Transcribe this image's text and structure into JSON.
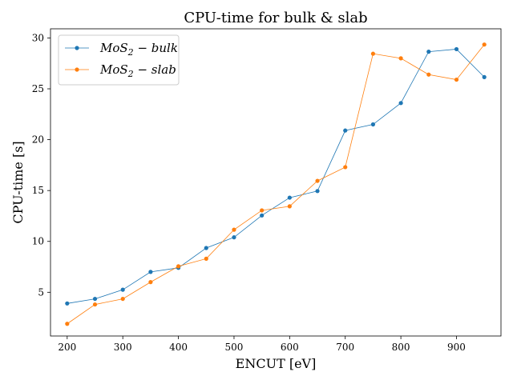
{
  "chart_data": {
    "type": "line",
    "title": "CPU-time for bulk & slab",
    "xlabel": "ENCUT [eV]",
    "ylabel": "CPU-time [s]",
    "xlim": [
      170,
      980
    ],
    "ylim": [
      0.7,
      30.9
    ],
    "xticks": [
      200,
      300,
      400,
      500,
      600,
      700,
      800,
      900
    ],
    "yticks": [
      5,
      10,
      15,
      20,
      25,
      30
    ],
    "grid": false,
    "legend_position": "top-left",
    "x": [
      200,
      250,
      300,
      350,
      400,
      450,
      500,
      550,
      600,
      650,
      700,
      750,
      800,
      850,
      900,
      950
    ],
    "series": [
      {
        "name": "MoS2 - bulk",
        "legend_base": "MoS",
        "legend_sub": "2",
        "legend_suffix": " − bulk",
        "color": "#1f77b4",
        "values": [
          3.9,
          4.35,
          5.25,
          7.0,
          7.4,
          9.35,
          10.4,
          12.55,
          14.3,
          14.95,
          20.9,
          21.5,
          23.6,
          28.65,
          28.9,
          26.15
        ]
      },
      {
        "name": "MoS2 - slab",
        "legend_base": "MoS",
        "legend_sub": "2",
        "legend_suffix": " − slab",
        "color": "#ff7f0e",
        "values": [
          1.9,
          3.8,
          4.35,
          6.0,
          7.55,
          8.3,
          11.15,
          13.05,
          13.45,
          15.95,
          17.3,
          28.45,
          28.0,
          26.4,
          25.9,
          29.35
        ]
      }
    ]
  }
}
